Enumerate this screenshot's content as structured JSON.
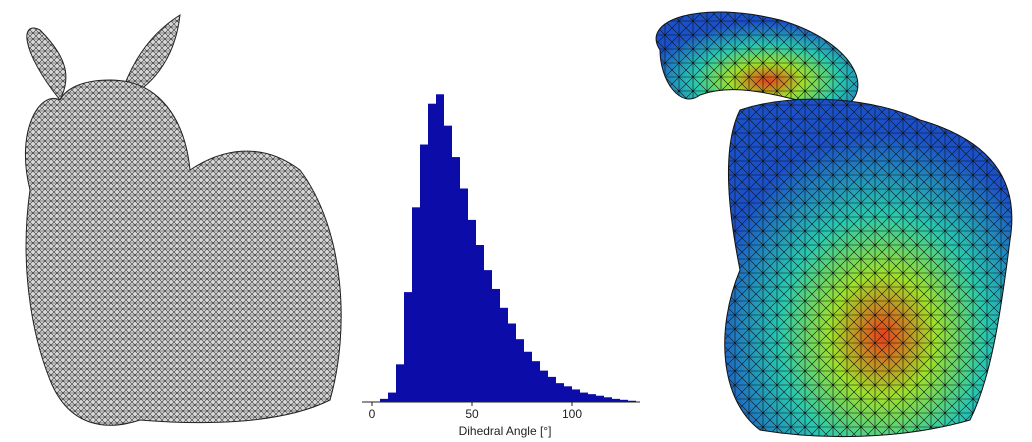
{
  "chart_data": {
    "type": "histogram",
    "x_label": "Dihedral Angle [°]",
    "bins": [
      4,
      8,
      12,
      16,
      20,
      24,
      28,
      32,
      36,
      40,
      44,
      48,
      52,
      56,
      60,
      64,
      68,
      72,
      76,
      80,
      84,
      88,
      92,
      96,
      100,
      104,
      108,
      112,
      116,
      120,
      124,
      128,
      132
    ],
    "values": [
      1,
      3,
      12,
      35,
      62,
      82,
      95,
      98,
      88,
      78,
      68,
      58,
      50,
      42,
      36,
      30,
      25,
      20,
      16,
      13,
      10,
      8,
      6,
      5,
      4,
      3,
      2.5,
      2,
      1.5,
      1,
      0.7,
      0.4
    ],
    "color": "#0c0ca8",
    "xlim": [
      -5,
      134
    ],
    "xticks": [
      0,
      50,
      100
    ],
    "ylim": [
      0,
      100
    ]
  }
}
